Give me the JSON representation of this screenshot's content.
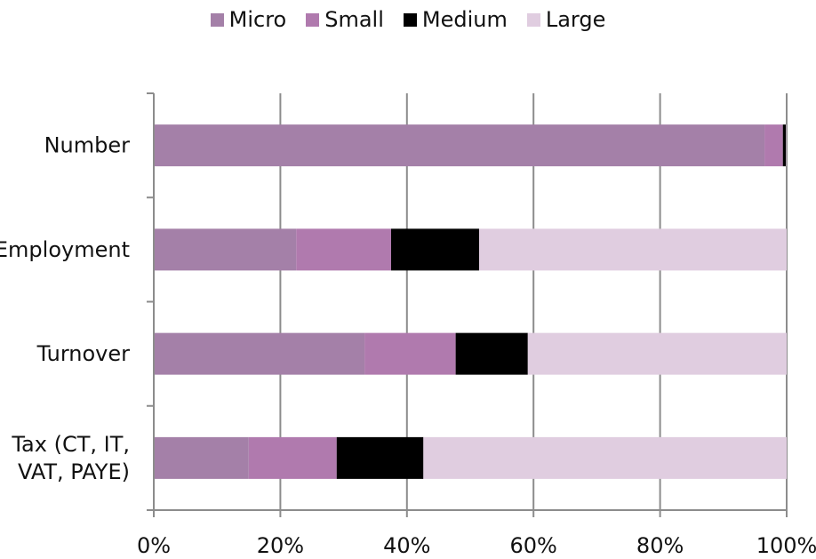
{
  "chart_data": {
    "type": "bar",
    "orientation": "horizontal",
    "stacked": "percent",
    "categories": [
      "Number",
      "Employment",
      "Turnover",
      "Tax (CT, IT, VAT, PAYE)"
    ],
    "category_lines": [
      [
        "Number"
      ],
      [
        "Employment"
      ],
      [
        "Turnover"
      ],
      [
        "Tax (CT, IT,",
        "VAT, PAYE)"
      ]
    ],
    "series": [
      {
        "name": "Micro",
        "color": "#a480a8",
        "values": [
          96.5,
          22.5,
          33.3,
          15.0
        ]
      },
      {
        "name": "Small",
        "color": "#b07aae",
        "values": [
          2.9,
          15.0,
          14.4,
          13.9
        ]
      },
      {
        "name": "Medium",
        "color": "#000000",
        "values": [
          0.5,
          13.9,
          11.4,
          13.7
        ]
      },
      {
        "name": "Large",
        "color": "#e0cde0",
        "values": [
          0.1,
          48.6,
          40.9,
          57.4
        ]
      }
    ],
    "x_ticks": [
      "0%",
      "20%",
      "40%",
      "60%",
      "80%",
      "100%"
    ],
    "xlim": [
      0,
      100
    ],
    "grid": "vertical",
    "legend": "top-center"
  }
}
